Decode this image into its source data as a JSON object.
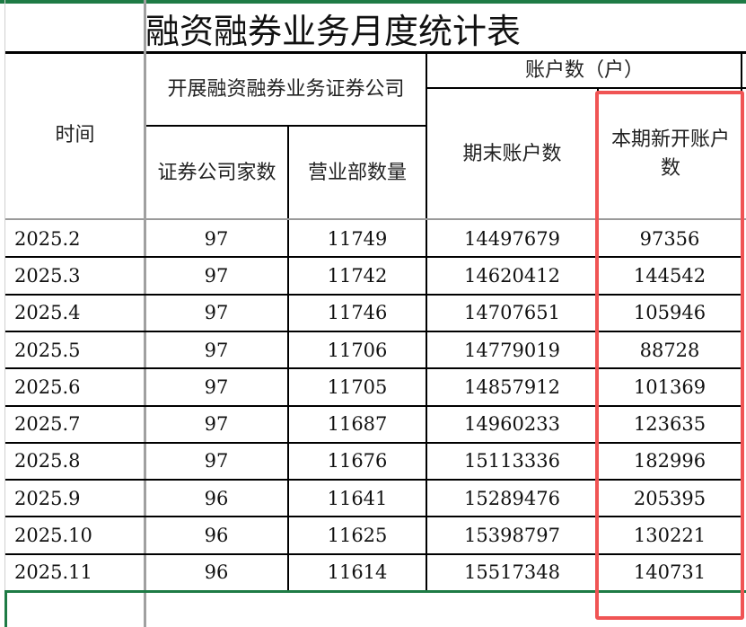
{
  "title": "融资融券业务月度统计表",
  "headers": {
    "time": "时间",
    "broker_group": "开展融资融券业务证券公司",
    "account_group": "账户数（户）",
    "broker_count": "证券公司家数",
    "branch_count": "营业部数量",
    "end_accounts": "期末账户数",
    "new_accounts": "本期新开账户数"
  },
  "rows": [
    {
      "time": "2025.2",
      "brokers": "97",
      "branches": "11749",
      "end_accounts": "14497679",
      "new_accounts": "97356"
    },
    {
      "time": "2025.3",
      "brokers": "97",
      "branches": "11742",
      "end_accounts": "14620412",
      "new_accounts": "144542"
    },
    {
      "time": "2025.4",
      "brokers": "97",
      "branches": "11746",
      "end_accounts": "14707651",
      "new_accounts": "105946"
    },
    {
      "time": "2025.5",
      "brokers": "97",
      "branches": "11706",
      "end_accounts": "14779019",
      "new_accounts": "88728"
    },
    {
      "time": "2025.6",
      "brokers": "97",
      "branches": "11705",
      "end_accounts": "14857912",
      "new_accounts": "101369"
    },
    {
      "time": "2025.7",
      "brokers": "97",
      "branches": "11687",
      "end_accounts": "14960233",
      "new_accounts": "123635"
    },
    {
      "time": "2025.8",
      "brokers": "97",
      "branches": "11676",
      "end_accounts": "15113336",
      "new_accounts": "182996"
    },
    {
      "time": "2025.9",
      "brokers": "96",
      "branches": "11641",
      "end_accounts": "15289476",
      "new_accounts": "205395"
    },
    {
      "time": "2025.10",
      "brokers": "96",
      "branches": "11625",
      "end_accounts": "15398797",
      "new_accounts": "130221"
    },
    {
      "time": "2025.11",
      "brokers": "96",
      "branches": "11614",
      "end_accounts": "15517348",
      "new_accounts": "140731"
    }
  ],
  "colors": {
    "highlight": "#f05454",
    "selection": "#1e7b45",
    "grid": "#000000",
    "row_header_line": "#a0a0a0"
  }
}
